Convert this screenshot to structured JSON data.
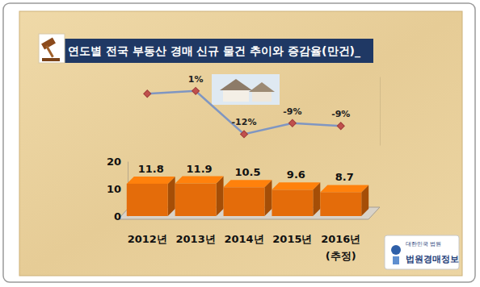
{
  "chart_data": {
    "type": "bar",
    "title": "연도별 전국 부동산 경매 신규 물건 추이와 증감율(만건)_",
    "categories": [
      "2012년",
      "2013년",
      "2014년",
      "2015년",
      "2016년\n(추정)"
    ],
    "series": [
      {
        "type": "bar",
        "color": "#e46c0a",
        "values": [
          11.8,
          11.9,
          10.5,
          9.6,
          8.7
        ]
      },
      {
        "type": "line",
        "axis": "y2",
        "color": "#7f96c2",
        "marker": "diamond",
        "values": [
          0,
          0.8,
          -11.8,
          -8.6,
          -9.4
        ],
        "value_labels": [
          null,
          "1%",
          "-12%",
          "-9%",
          "-9%"
        ]
      }
    ],
    "ylim": [
      0,
      20
    ],
    "yticks": [
      0,
      10,
      20
    ],
    "y2lim": [
      -15,
      5
    ],
    "y2ticks": [],
    "grid": false,
    "data_labels": true,
    "annotations": [
      "대한민국 법원",
      "법원경매정보"
    ]
  }
}
